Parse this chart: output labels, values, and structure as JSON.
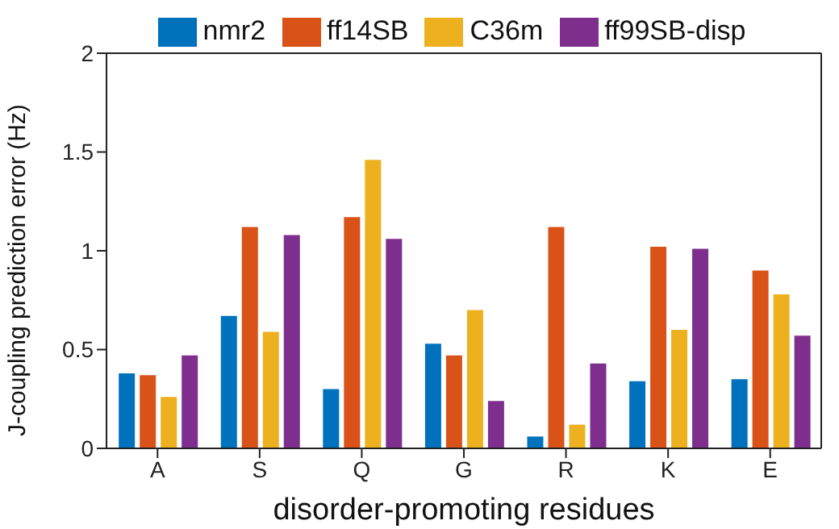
{
  "chart_data": {
    "type": "bar",
    "xlabel": "disorder-promoting residues",
    "ylabel": "J-coupling prediction error (Hz)",
    "categories": [
      "A",
      "S",
      "Q",
      "G",
      "R",
      "K",
      "E"
    ],
    "series": [
      {
        "name": "nmr2",
        "color": "#0072bd",
        "values": [
          0.38,
          0.67,
          0.3,
          0.53,
          0.06,
          0.34,
          0.35
        ]
      },
      {
        "name": "ff14SB",
        "color": "#d95319",
        "values": [
          0.37,
          1.12,
          1.17,
          0.47,
          1.12,
          1.02,
          0.9
        ]
      },
      {
        "name": "C36m",
        "color": "#edb120",
        "values": [
          0.26,
          0.59,
          1.46,
          0.7,
          0.12,
          0.6,
          0.78
        ]
      },
      {
        "name": "ff99SB-disp",
        "color": "#7e2f8e",
        "values": [
          0.47,
          1.08,
          1.06,
          0.24,
          0.43,
          1.01,
          0.57
        ]
      }
    ],
    "ylim": [
      0,
      2
    ],
    "yticks": [
      0,
      0.5,
      1,
      1.5,
      2
    ],
    "grid": false,
    "legend": "top"
  }
}
